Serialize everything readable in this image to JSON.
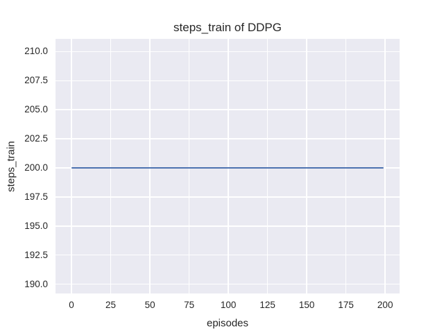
{
  "figure": {
    "background": "#ffffff",
    "text_color": "#262626"
  },
  "chart_data": {
    "type": "line",
    "title": "steps_train of DDPG",
    "xlabel": "episodes",
    "ylabel": "steps_train",
    "xlim": [
      -10.2,
      209.2
    ],
    "ylim": [
      189.2,
      211.1
    ],
    "grid": true,
    "legend_position": "none",
    "x_ticks": {
      "values": [
        0,
        25,
        50,
        75,
        100,
        125,
        150,
        175,
        200
      ],
      "labels": [
        "0",
        "25",
        "50",
        "75",
        "100",
        "125",
        "150",
        "175",
        "200"
      ]
    },
    "y_ticks": {
      "values": [
        190.0,
        192.5,
        195.0,
        197.5,
        200.0,
        202.5,
        205.0,
        207.5,
        210.0
      ],
      "labels": [
        "190.0",
        "192.5",
        "195.0",
        "197.5",
        "200.0",
        "202.5",
        "205.0",
        "207.5",
        "210.0"
      ]
    },
    "style": {
      "plot_background": "#eaeaf2",
      "gridline_color": "#ffffff",
      "line_width": 2
    },
    "series": [
      {
        "name": "steps_train",
        "color": "#4c72b0",
        "x": [
          0,
          199
        ],
        "y": [
          200,
          200
        ]
      }
    ]
  }
}
